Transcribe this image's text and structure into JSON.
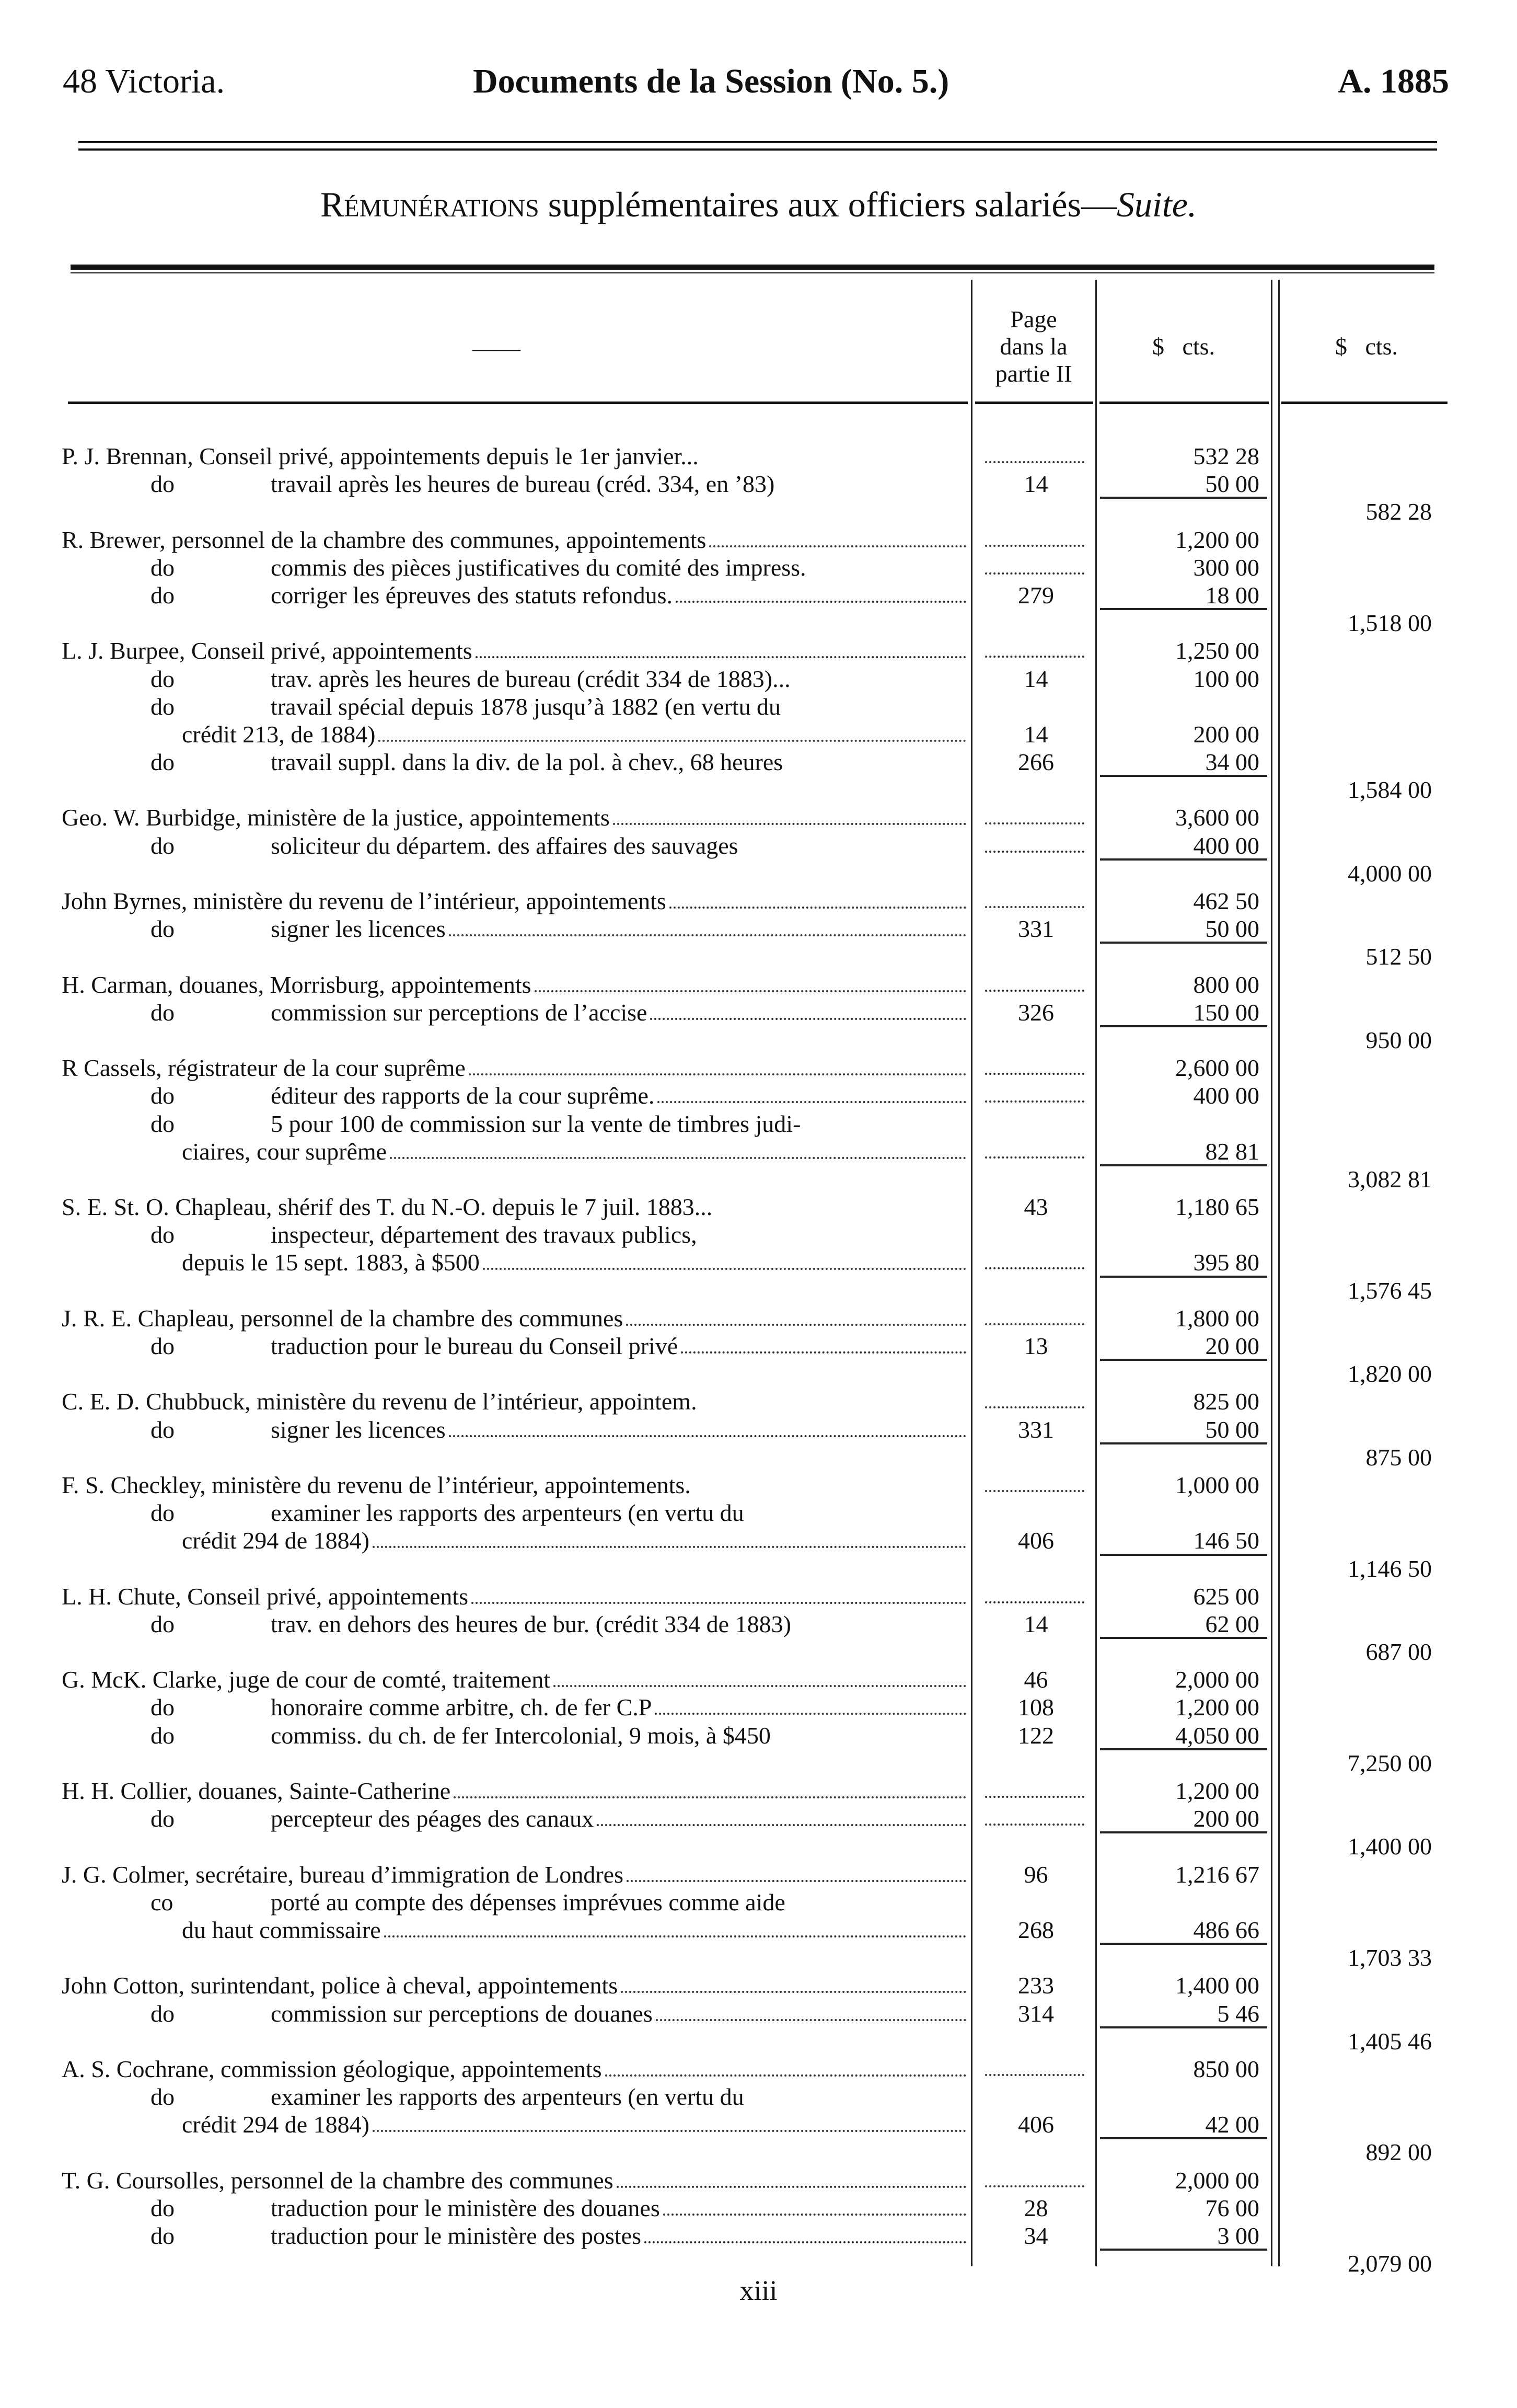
{
  "header": {
    "left": "48 Victoria.",
    "center": "Documents de la Session (No. 5.)",
    "right": "A. 1885"
  },
  "title": {
    "smallcaps": "Rémunérations",
    "main": " supplémentaires aux officiers salariés—",
    "italic": "Suite."
  },
  "columns": {
    "description": "——",
    "page": [
      "Page",
      "dans la",
      "partie II"
    ],
    "amount": "$   cts.",
    "total": "$   cts."
  },
  "entries": [
    {
      "lines": [
        {
          "text": "P. J. Brennan, Conseil privé, appointements depuis le 1er janvier...",
          "page": null,
          "amount": "532 28"
        },
        {
          "do": "do",
          "text": "travail après les heures de bureau (créd. 334, en ’83)",
          "page": "14",
          "amount": "50 00"
        }
      ],
      "total": "582 28"
    },
    {
      "lines": [
        {
          "text": "R. Brewer, personnel de la chambre des communes, appointements",
          "leader": true,
          "page": null,
          "amount": "1,200 00"
        },
        {
          "do": "do",
          "text": "commis des pièces justificatives du comité des impress.",
          "page": null,
          "amount": "300 00"
        },
        {
          "do": "do",
          "text": "corriger les épreuves des statuts refondus.",
          "leader": true,
          "page": "279",
          "amount": "18 00"
        }
      ],
      "total": "1,518 00"
    },
    {
      "lines": [
        {
          "text": "L. J. Burpee, Conseil privé, appointements",
          "leader": true,
          "page": null,
          "amount": "1,250 00"
        },
        {
          "do": "do",
          "text": "trav. après les heures de bureau (crédit 334 de 1883)...",
          "page": "14",
          "amount": "100 00"
        },
        {
          "do": "do",
          "text": "travail spécial depuis 1878 jusqu’à 1882 (en vertu du",
          "page": "",
          "amount": ""
        },
        {
          "cont": true,
          "text": "crédit 213, de 1884)",
          "leader": true,
          "page": "14",
          "amount": "200 00"
        },
        {
          "do": "do",
          "text": "travail suppl. dans la div. de la pol. à chev., 68 heures",
          "page": "266",
          "amount": "34 00"
        }
      ],
      "total": "1,584 00"
    },
    {
      "lines": [
        {
          "text": "Geo. W. Burbidge, ministère de la justice, appointements",
          "leader": true,
          "page": null,
          "amount": "3,600 00"
        },
        {
          "do": "do",
          "text": "soliciteur du départem. des affaires des sauvages",
          "page": null,
          "amount": "400 00"
        }
      ],
      "total": "4,000 00"
    },
    {
      "lines": [
        {
          "text": "John Byrnes, ministère du revenu de l’intérieur, appointements",
          "leader": true,
          "page": null,
          "amount": "462 50"
        },
        {
          "do": "do",
          "text": "signer les licences",
          "leader": true,
          "page": "331",
          "amount": "50 00"
        }
      ],
      "total": "512 50"
    },
    {
      "lines": [
        {
          "text": "H. Carman, douanes, Morrisburg, appointements",
          "leader": true,
          "page": null,
          "amount": "800 00"
        },
        {
          "do": "do",
          "text": "commission sur perceptions de l’accise",
          "leader": true,
          "page": "326",
          "amount": "150 00"
        }
      ],
      "total": "950 00"
    },
    {
      "lines": [
        {
          "text": "R Cassels, régistrateur de la cour suprême",
          "leader": true,
          "page": null,
          "amount": "2,600 00"
        },
        {
          "do": "do",
          "text": "éditeur des rapports de la cour suprême.",
          "leader": true,
          "page": null,
          "amount": "400 00"
        },
        {
          "do": "do",
          "text": "5 pour 100 de commission sur la vente de timbres judi-",
          "page": "",
          "amount": ""
        },
        {
          "cont": true,
          "text": "ciaires, cour suprême",
          "leader": true,
          "page": null,
          "amount": "82 81"
        }
      ],
      "total": "3,082 81"
    },
    {
      "lines": [
        {
          "text": "S. E. St. O. Chapleau, shérif des T. du N.-O. depuis le 7 juil. 1883...",
          "page": "43",
          "amount": "1,180 65"
        },
        {
          "do": "do",
          "text": "inspecteur, département des travaux publics,",
          "page": "",
          "amount": ""
        },
        {
          "cont": true,
          "text": "depuis le 15 sept. 1883, à $500",
          "leader": true,
          "page": null,
          "amount": "395 80"
        }
      ],
      "total": "1,576 45"
    },
    {
      "lines": [
        {
          "text": "J. R. E. Chapleau, personnel de la chambre des communes",
          "leader": true,
          "page": null,
          "amount": "1,800 00"
        },
        {
          "do": "do",
          "text": "traduction pour le bureau du Conseil privé",
          "leader": true,
          "page": "13",
          "amount": "20 00"
        }
      ],
      "total": "1,820 00"
    },
    {
      "lines": [
        {
          "text": "C. E. D. Chubbuck, ministère du revenu de l’intérieur, appointem.",
          "page": null,
          "amount": "825 00"
        },
        {
          "do": "do",
          "text": "signer les licences",
          "leader": true,
          "page": "331",
          "amount": "50 00"
        }
      ],
      "total": "875 00"
    },
    {
      "lines": [
        {
          "text": "F. S. Checkley, ministère du revenu de l’intérieur, appointements.",
          "page": null,
          "amount": "1,000 00"
        },
        {
          "do": "do",
          "text": "examiner les rapports des arpenteurs (en vertu du",
          "page": "",
          "amount": ""
        },
        {
          "cont": true,
          "text": "crédit 294 de 1884)",
          "leader": true,
          "page": "406",
          "amount": "146 50"
        }
      ],
      "total": "1,146 50"
    },
    {
      "lines": [
        {
          "text": "L. H. Chute, Conseil privé, appointements",
          "leader": true,
          "page": null,
          "amount": "625 00"
        },
        {
          "do": "do",
          "text": "trav. en dehors des heures de bur. (crédit 334 de 1883)",
          "page": "14",
          "amount": "62 00"
        }
      ],
      "total": "687 00"
    },
    {
      "lines": [
        {
          "text": "G. McK. Clarke, juge de cour de comté, traitement",
          "leader": true,
          "page": "46",
          "amount": "2,000 00"
        },
        {
          "do": "do",
          "text": "honoraire comme arbitre, ch. de fer C.P",
          "leader": true,
          "page": "108",
          "amount": "1,200 00"
        },
        {
          "do": "do",
          "text": "commiss. du ch. de fer Intercolonial, 9 mois, à $450",
          "page": "122",
          "amount": "4,050 00"
        }
      ],
      "total": "7,250 00"
    },
    {
      "lines": [
        {
          "text": "H. H. Collier, douanes, Sainte-Catherine",
          "leader": true,
          "page": null,
          "amount": "1,200 00"
        },
        {
          "do": "do",
          "text": "percepteur des péages des canaux",
          "leader": true,
          "page": null,
          "amount": "200 00"
        }
      ],
      "total": "1,400 00"
    },
    {
      "lines": [
        {
          "text": "J. G. Colmer, secrétaire, bureau d’immigration de Londres",
          "leader": true,
          "page": "96",
          "amount": "1,216 67"
        },
        {
          "do": "co",
          "text": "porté au compte des dépenses imprévues comme aide",
          "page": "",
          "amount": ""
        },
        {
          "cont": true,
          "text": "du haut commissaire",
          "leader": true,
          "page": "268",
          "amount": "486 66"
        }
      ],
      "total": "1,703 33"
    },
    {
      "lines": [
        {
          "text": "John Cotton, surintendant, police à cheval, appointements",
          "leader": true,
          "page": "233",
          "amount": "1,400 00"
        },
        {
          "do": "do",
          "text": "commission sur perceptions de douanes",
          "leader": true,
          "page": "314",
          "amount": "5 46"
        }
      ],
      "total": "1,405 46"
    },
    {
      "lines": [
        {
          "text": "A. S. Cochrane, commission géologique, appointements",
          "leader": true,
          "page": null,
          "amount": "850 00"
        },
        {
          "do": "do",
          "text": "examiner les rapports des arpenteurs (en vertu du",
          "page": "",
          "amount": ""
        },
        {
          "cont": true,
          "text": "crédit 294 de 1884)",
          "leader": true,
          "page": "406",
          "amount": "42 00"
        }
      ],
      "total": "892 00"
    },
    {
      "lines": [
        {
          "text": "T. G. Coursolles, personnel de la chambre des communes",
          "leader": true,
          "page": null,
          "amount": "2,000 00"
        },
        {
          "do": "do",
          "text": "traduction pour le ministère des douanes",
          "leader": true,
          "page": "28",
          "amount": "76 00"
        },
        {
          "do": "do",
          "text": "traduction pour le ministère des postes",
          "leader": true,
          "page": "34",
          "amount": "3 00"
        }
      ],
      "total": "2,079 00"
    }
  ],
  "footer": {
    "page_number": "xiii"
  }
}
